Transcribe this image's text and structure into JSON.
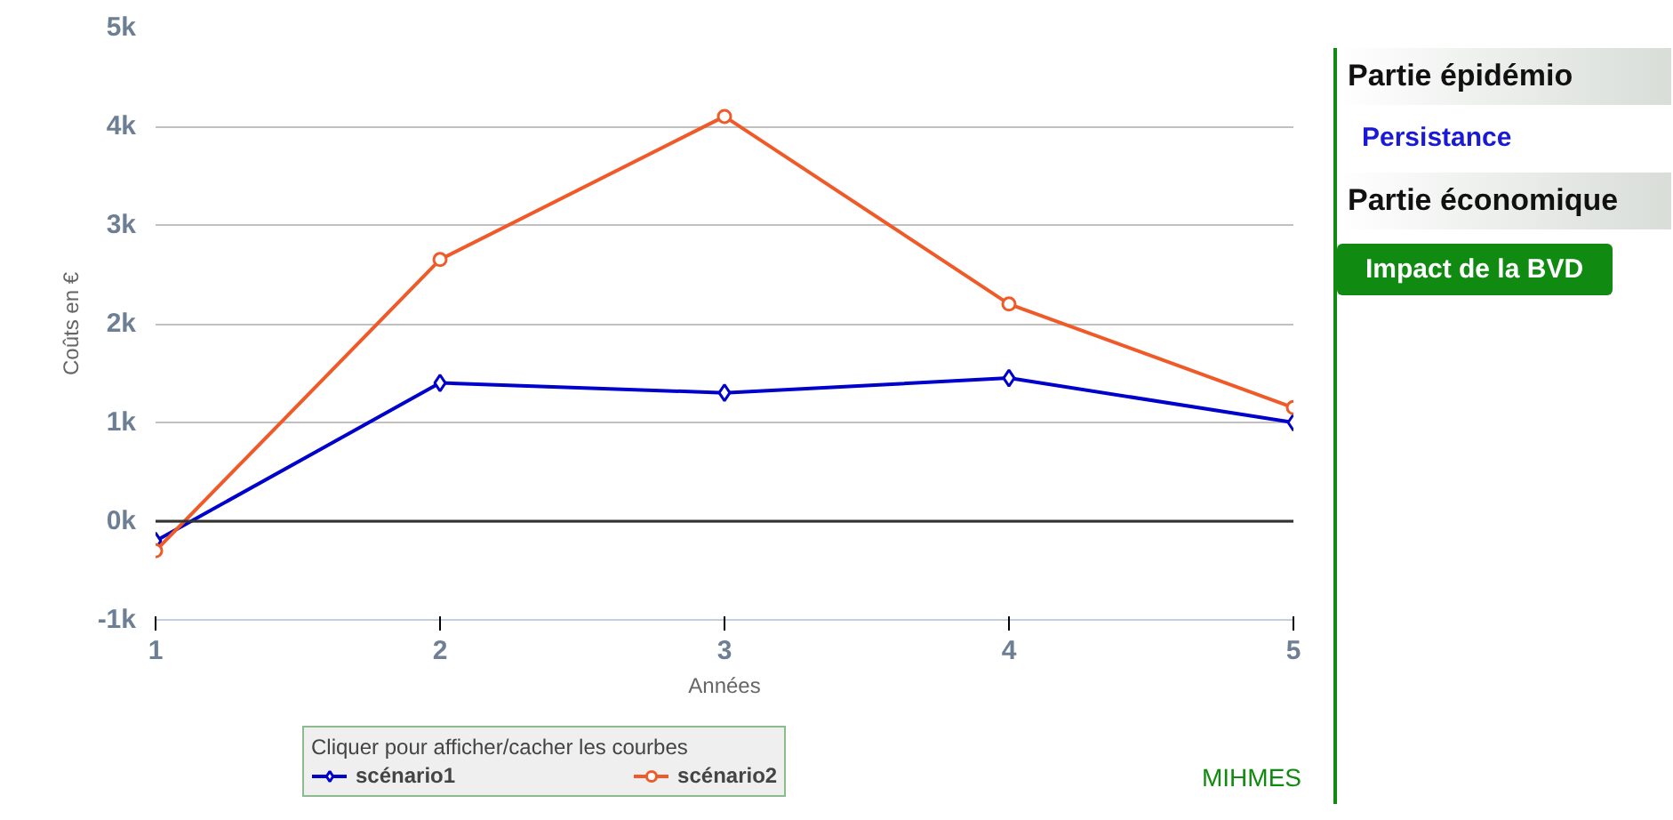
{
  "chart_data": {
    "type": "line",
    "xlabel": "Années",
    "ylabel": "Coûts en €",
    "legend_title": "Cliquer pour afficher/cacher les courbes",
    "x": [
      1,
      2,
      3,
      4,
      5
    ],
    "series": [
      {
        "name": "scénario1",
        "color": "#0000cc",
        "marker": "diamond",
        "values": [
          -200,
          1400,
          1300,
          1450,
          1000
        ]
      },
      {
        "name": "scénario2",
        "color": "#f05a28",
        "marker": "circle",
        "values": [
          -300,
          2650,
          4100,
          2200,
          1150
        ]
      }
    ],
    "xlim": [
      1,
      5
    ],
    "xticks": [
      1,
      2,
      3,
      4,
      5
    ],
    "ylim": [
      -1000,
      5000
    ],
    "yticks": [
      {
        "value": -1000,
        "label": "-1k"
      },
      {
        "value": 0,
        "label": "0k"
      },
      {
        "value": 1000,
        "label": "1k"
      },
      {
        "value": 2000,
        "label": "2k"
      },
      {
        "value": 3000,
        "label": "3k"
      },
      {
        "value": 4000,
        "label": "4k"
      },
      {
        "value": 5000,
        "label": "5k"
      }
    ],
    "ref_lines": [
      {
        "axis": "y",
        "value": 0,
        "color": "#333333"
      }
    ],
    "grid": "y",
    "legend": "bottom",
    "line_style": "solid",
    "annotations": [
      "Partie épidémio",
      "Persistance",
      "Partie économique",
      "Impact de la BVD",
      "MIHMES"
    ]
  }
}
